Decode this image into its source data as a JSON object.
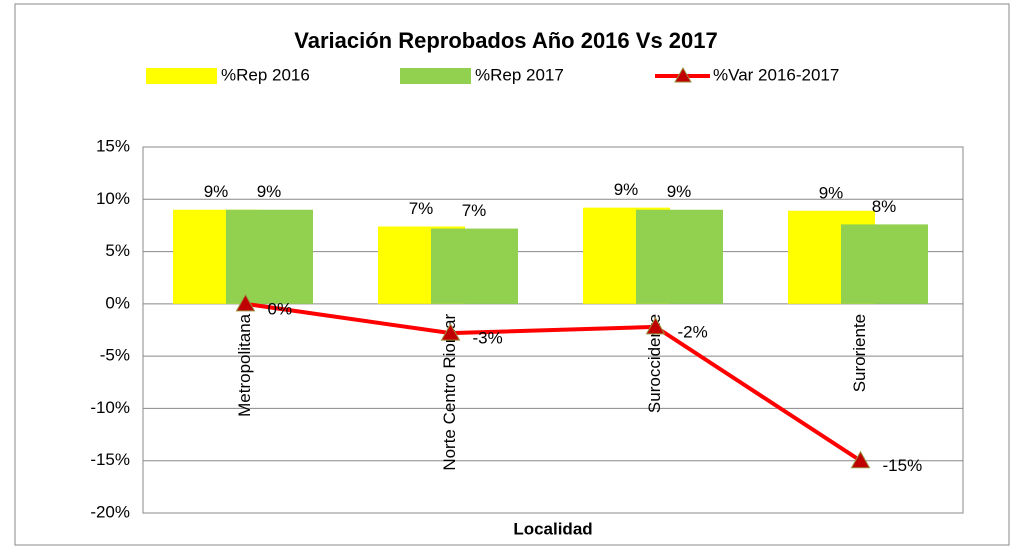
{
  "chart_data": {
    "type": "bar_line",
    "title": "Variación Reprobados Año 2016 Vs 2017",
    "x_label": "Localidad",
    "categories": [
      "Metropolitana",
      "Norte Centro Riomar",
      "Suroccidente",
      "Suroriente"
    ],
    "series": [
      {
        "name": "%Rep 2016",
        "type": "bar",
        "color": "#ffff00",
        "values": [
          9.0,
          7.4,
          9.2,
          8.9
        ],
        "value_labels": [
          "9%",
          "7%",
          "9%",
          "9%"
        ]
      },
      {
        "name": "%Rep 2017",
        "type": "bar",
        "color": "#92d050",
        "values": [
          9.0,
          7.2,
          9.0,
          7.6
        ],
        "value_labels": [
          "9%",
          "7%",
          "9%",
          "8%"
        ]
      },
      {
        "name": "%Var 2016-2017",
        "type": "line",
        "color": "#ff0000",
        "marker_color": "#c00000",
        "values": [
          0,
          -2.8,
          -2.2,
          -15
        ],
        "value_labels": [
          "0%",
          "-3%",
          "-2%",
          "-15%"
        ]
      }
    ],
    "ylim": [
      -20,
      15
    ],
    "yticks": [
      {
        "value": -20,
        "label": "-20%"
      },
      {
        "value": -15,
        "label": "-15%"
      },
      {
        "value": -10,
        "label": "-10%"
      },
      {
        "value": -5,
        "label": "-5%"
      },
      {
        "value": 0,
        "label": "0%"
      },
      {
        "value": 5,
        "label": "5%"
      },
      {
        "value": 10,
        "label": "10%"
      },
      {
        "value": 15,
        "label": "15%"
      }
    ],
    "grid": true
  }
}
